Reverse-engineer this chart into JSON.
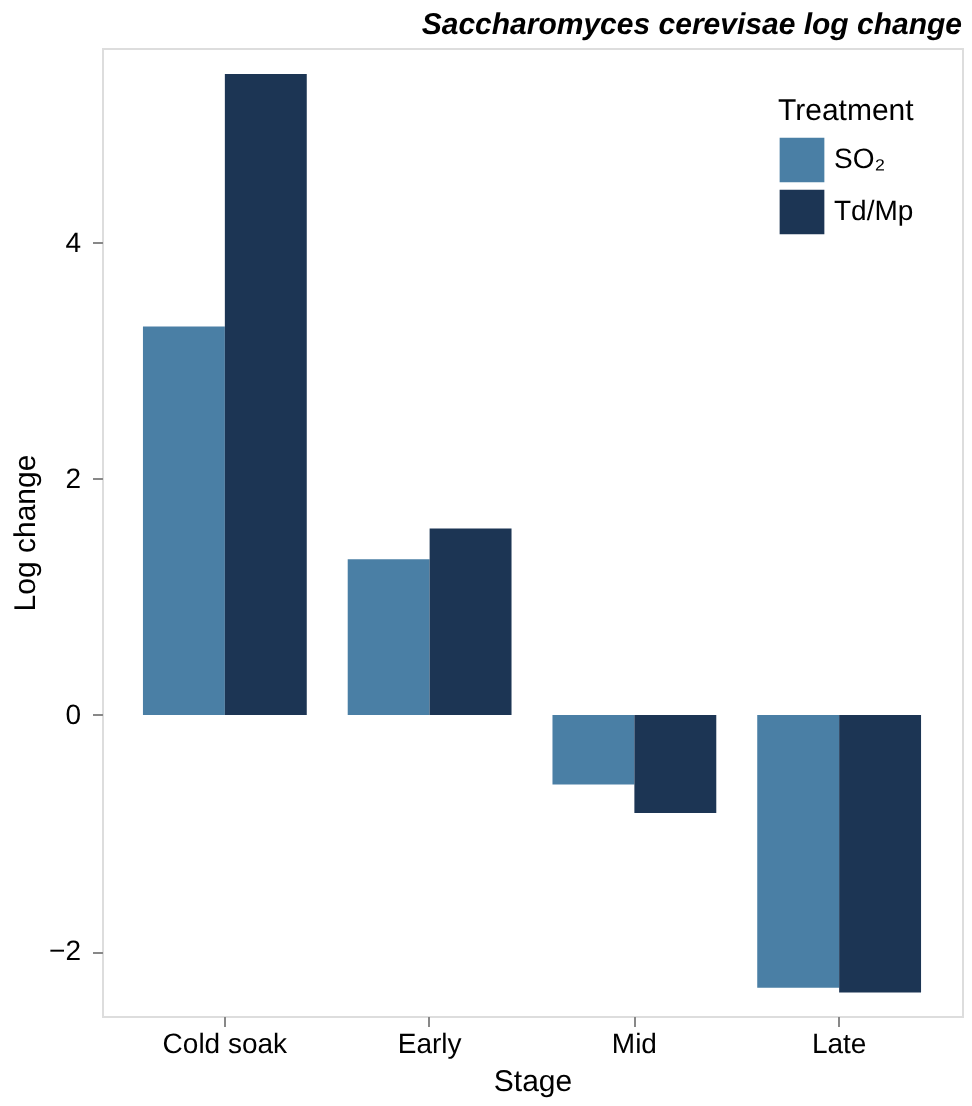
{
  "chart_data": {
    "type": "bar",
    "title": "Saccharomyces cerevisae log change",
    "xlabel": "Stage",
    "ylabel": "Log change",
    "legend_title": "Treatment",
    "categories": [
      "Cold soak",
      "Early",
      "Mid",
      "Late"
    ],
    "series": [
      {
        "name": "SO₂",
        "color": "#4a7fa5",
        "values": [
          3.29,
          1.32,
          -0.59,
          -2.31
        ]
      },
      {
        "name": "Td/Mp",
        "color": "#1c3554",
        "values": [
          5.43,
          1.58,
          -0.83,
          -2.35
        ]
      }
    ],
    "ylim": [
      -2.55,
      5.65
    ],
    "yticks": [
      -2,
      0,
      2,
      4
    ],
    "grid": false,
    "legend": "top right"
  }
}
